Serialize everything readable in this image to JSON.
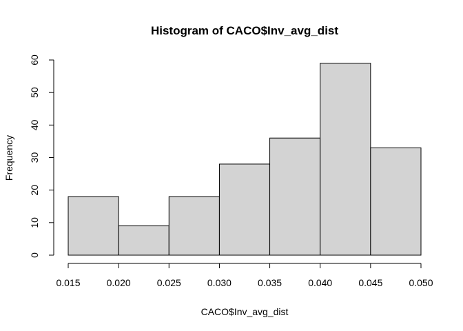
{
  "chart_data": {
    "type": "bar",
    "title": "Histogram of CACO$Inv_avg_dist",
    "xlabel": "CACO$Inv_avg_dist",
    "ylabel": "Frequency",
    "bins": [
      {
        "start": 0.015,
        "end": 0.02,
        "count": 18
      },
      {
        "start": 0.02,
        "end": 0.025,
        "count": 9
      },
      {
        "start": 0.025,
        "end": 0.03,
        "count": 18
      },
      {
        "start": 0.03,
        "end": 0.035,
        "count": 28
      },
      {
        "start": 0.035,
        "end": 0.04,
        "count": 36
      },
      {
        "start": 0.04,
        "end": 0.045,
        "count": 59
      },
      {
        "start": 0.045,
        "end": 0.05,
        "count": 33
      }
    ],
    "xlim": [
      0.015,
      0.05
    ],
    "ylim": [
      0,
      60
    ],
    "x_ticks": [
      "0.015",
      "0.020",
      "0.025",
      "0.030",
      "0.035",
      "0.040",
      "0.045",
      "0.050"
    ],
    "y_ticks": [
      "0",
      "10",
      "20",
      "30",
      "40",
      "50",
      "60"
    ],
    "grid": false,
    "legend": "none",
    "colors": {
      "bar_fill": "#d3d3d3",
      "bar_stroke": "#000000",
      "background": "#ffffff"
    }
  }
}
